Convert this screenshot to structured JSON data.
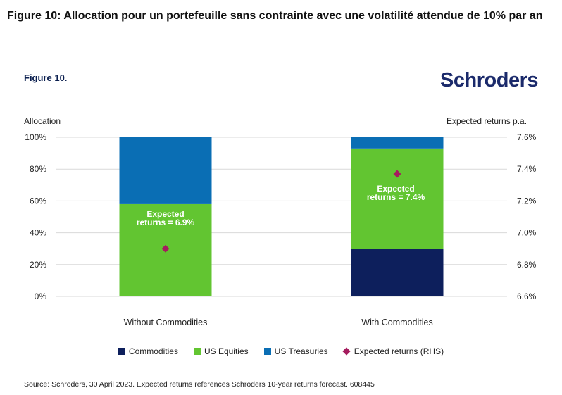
{
  "header": {
    "title": "Figure 10: Allocation pour un portefeuille sans contrainte avec une volatilité attendue de 10% par an",
    "figure_label": "Figure 10.",
    "brand": "Schroders"
  },
  "chart_data": {
    "type": "bar",
    "stacked": true,
    "categories": [
      "Without Commodities",
      "With Commodities"
    ],
    "series": [
      {
        "name": "Commodities",
        "color": "#0d1f5c",
        "values": [
          0,
          30
        ]
      },
      {
        "name": "US Equities",
        "color": "#62c531",
        "values": [
          58,
          63
        ]
      },
      {
        "name": "US Treasuries",
        "color": "#0a6eb4",
        "values": [
          42,
          7
        ]
      }
    ],
    "expected_returns": {
      "name": "Expected returns (RHS)",
      "color": "#a51c5e",
      "values": [
        6.9,
        7.37
      ],
      "annotations": [
        [
          "Expected",
          "returns = 6.9%"
        ],
        [
          "Expected",
          "returns = 7.4%"
        ]
      ]
    },
    "ylabel_left": "Allocation",
    "ylabel_right": "Expected returns p.a.",
    "left_ticks": [
      "0%",
      "20%",
      "40%",
      "60%",
      "80%",
      "100%"
    ],
    "right_ticks": [
      "6.6%",
      "6.8%",
      "7.0%",
      "7.2%",
      "7.4%",
      "7.6%"
    ],
    "ylim_left": [
      0,
      100
    ],
    "ylim_right": [
      6.6,
      7.6
    ],
    "grid": true,
    "legend_position": "bottom"
  },
  "legend": [
    {
      "label": "Commodities",
      "color": "#0d1f5c",
      "shape": "square"
    },
    {
      "label": "US Equities",
      "color": "#62c531",
      "shape": "square"
    },
    {
      "label": "US Treasuries",
      "color": "#0a6eb4",
      "shape": "square"
    },
    {
      "label": "Expected returns (RHS)",
      "color": "#a51c5e",
      "shape": "diamond"
    }
  ],
  "source": "Source: Schroders, 30 April 2023. Expected returns references Schroders 10-year returns forecast. 608445"
}
